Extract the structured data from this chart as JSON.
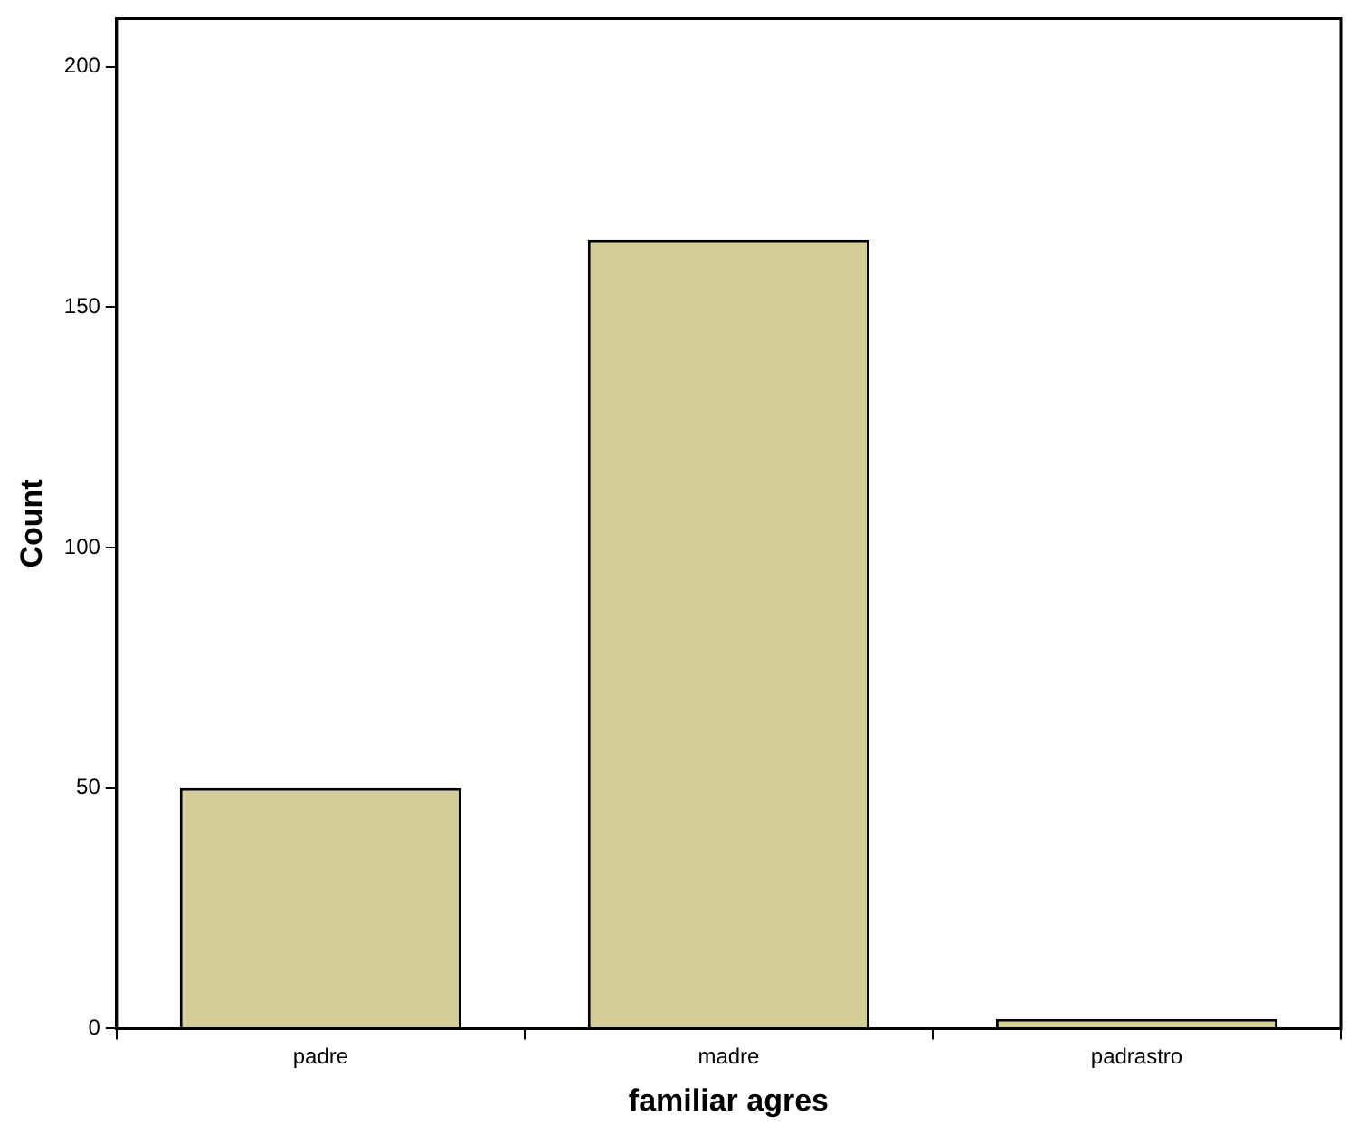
{
  "chart_data": {
    "type": "bar",
    "xlabel": "familiar agres",
    "ylabel": "Count",
    "categories": [
      "padre",
      "madre",
      "padrastro"
    ],
    "values": [
      50,
      164,
      2
    ],
    "color": "#d3ce97",
    "ylim": [
      0,
      210
    ],
    "yticks": [
      0,
      50,
      100,
      150,
      200
    ],
    "grid": false,
    "legend": false
  }
}
